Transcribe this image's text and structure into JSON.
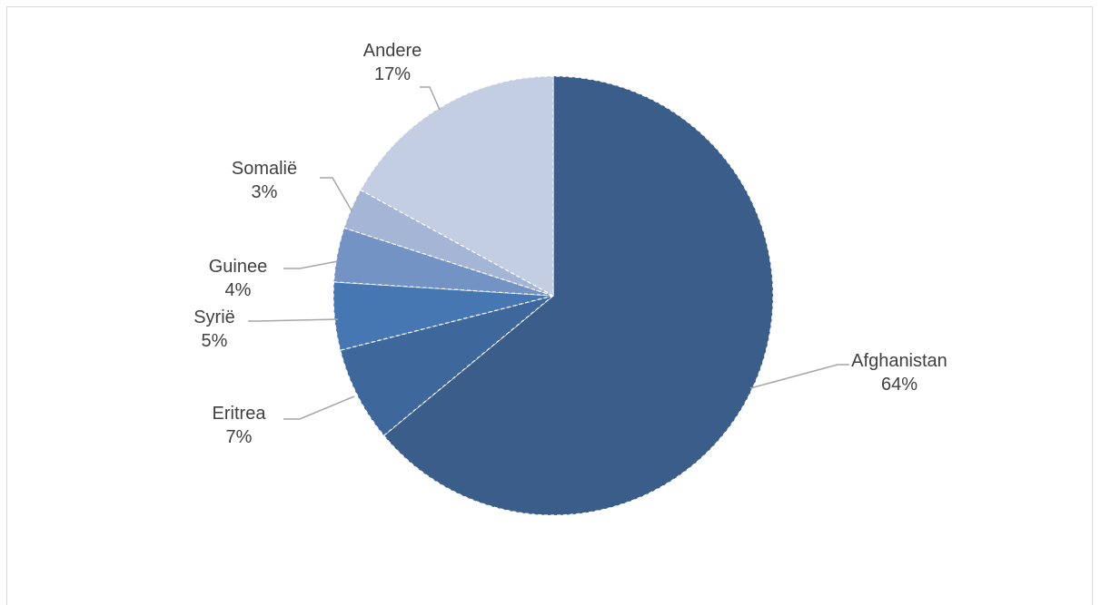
{
  "chart_data": {
    "type": "pie",
    "slices": [
      {
        "label": "Afghanistan",
        "value": 64,
        "pct_label": "64%",
        "color": "#3a5d8a"
      },
      {
        "label": "Eritrea",
        "value": 7,
        "pct_label": "7%",
        "color": "#3e689b"
      },
      {
        "label": "Syrië",
        "value": 5,
        "pct_label": "5%",
        "color": "#4677b3"
      },
      {
        "label": "Guinee",
        "value": 4,
        "pct_label": "4%",
        "color": "#7393c4"
      },
      {
        "label": "Somalië",
        "value": 3,
        "pct_label": "3%",
        "color": "#a4b5d6"
      },
      {
        "label": "Andere",
        "value": 17,
        "pct_label": "17%",
        "color": "#c3cee2"
      }
    ],
    "start": "12 o'clock",
    "direction": "clockwise",
    "labels": "outside with leader lines"
  }
}
